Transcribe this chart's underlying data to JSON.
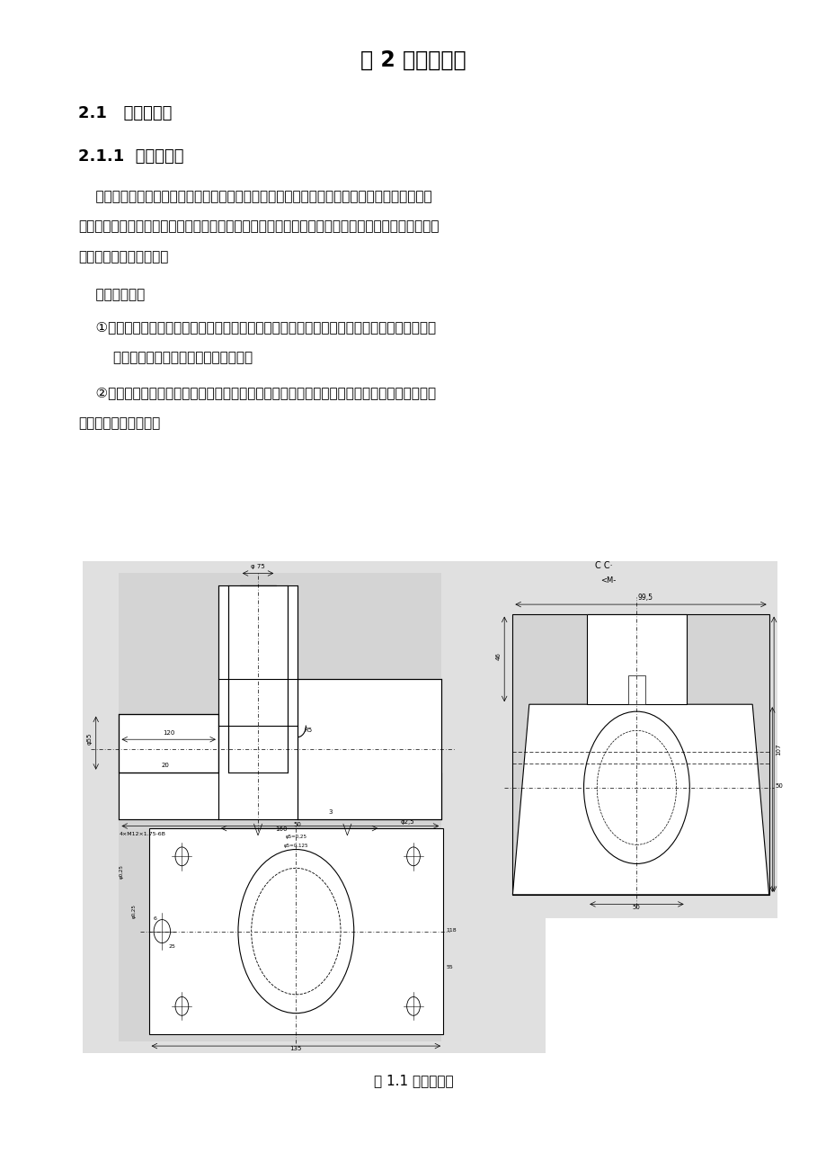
{
  "bg_color": "#ffffff",
  "page_width": 9.2,
  "page_height": 13.01,
  "title": "第 2 章工艺设计",
  "heading1": "2.1   零件的分析",
  "heading2": "2.1.1  零件的作用",
  "para1_lines": [
    "    于托架而言，托架为较重要零件，在它的作用下，可连接轴，套以及齿轮，确保其拥有正确地",
    "点，它们开展的运动依据一定的传动关系协调开展。故而，托架生产质量的高低，直接关系到机械精",
    "度，使用时长以及性能。"
  ],
  "para2": "    托架的作用：",
  "para3_lines": [
    "    ①降低速度之时将输出扔矩提升，根据电机的输出与减速比的乘积就可得到扔矩输出比例，这",
    "        里要关注切不可比托架额定扔矩还大。"
  ],
  "para4_lines": [
    "    ②降低速度之时将负载惯量降低，减速比的平方値即为减少的惯量。故而平常的生活中所用较",
    "多，作用也较为关键。"
  ],
  "caption": "图 1.1 托架零件图",
  "title_fontsize": 17,
  "heading_fontsize": 13,
  "body_fontsize": 11,
  "caption_fontsize": 11
}
